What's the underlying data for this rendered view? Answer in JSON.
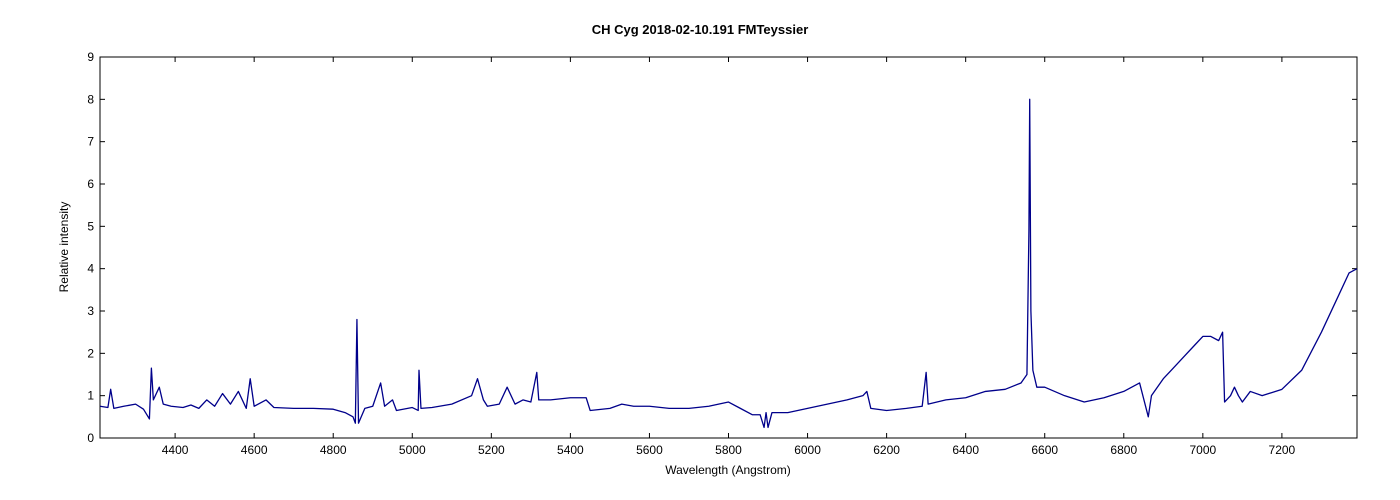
{
  "chart_data": {
    "type": "line",
    "title": "CH Cyg  2018-02-10.191  FMTeyssier",
    "xlabel": "Wavelength (Angstrom)",
    "ylabel": "Relative intensity",
    "xlim": [
      4210,
      7390
    ],
    "ylim": [
      0,
      9
    ],
    "xticks": [
      4400,
      4600,
      4800,
      5000,
      5200,
      5400,
      5600,
      5800,
      6000,
      6200,
      6400,
      6600,
      6800,
      7000,
      7200
    ],
    "yticks": [
      0,
      1,
      2,
      3,
      4,
      5,
      6,
      7,
      8,
      9
    ],
    "x": [
      4210,
      4230,
      4237,
      4245,
      4270,
      4300,
      4320,
      4335,
      4340,
      4345,
      4360,
      4370,
      4390,
      4420,
      4440,
      4460,
      4480,
      4500,
      4520,
      4540,
      4560,
      4580,
      4590,
      4600,
      4630,
      4650,
      4700,
      4750,
      4800,
      4830,
      4850,
      4856,
      4860,
      4864,
      4880,
      4900,
      4920,
      4930,
      4950,
      4960,
      5000,
      5015,
      5017,
      5022,
      5050,
      5100,
      5150,
      5165,
      5180,
      5190,
      5220,
      5240,
      5260,
      5280,
      5300,
      5315,
      5320,
      5350,
      5400,
      5440,
      5450,
      5500,
      5530,
      5560,
      5600,
      5650,
      5700,
      5750,
      5800,
      5830,
      5860,
      5880,
      5890,
      5895,
      5900,
      5910,
      5950,
      6000,
      6050,
      6100,
      6140,
      6150,
      6160,
      6200,
      6250,
      6290,
      6300,
      6305,
      6350,
      6400,
      6450,
      6500,
      6540,
      6555,
      6560,
      6562,
      6565,
      6570,
      6580,
      6600,
      6650,
      6700,
      6750,
      6800,
      6840,
      6862,
      6870,
      6900,
      6920,
      6950,
      6980,
      7000,
      7020,
      7040,
      7050,
      7055,
      7070,
      7080,
      7090,
      7100,
      7120,
      7150,
      7200,
      7250,
      7300,
      7340,
      7370,
      7390
    ],
    "series": [
      {
        "color": "#00008b",
        "values": [
          0.75,
          0.72,
          1.15,
          0.7,
          0.75,
          0.8,
          0.68,
          0.45,
          1.65,
          0.9,
          1.2,
          0.8,
          0.75,
          0.72,
          0.78,
          0.7,
          0.9,
          0.75,
          1.05,
          0.8,
          1.1,
          0.7,
          1.4,
          0.75,
          0.9,
          0.72,
          0.7,
          0.7,
          0.68,
          0.6,
          0.5,
          0.35,
          2.8,
          0.35,
          0.7,
          0.75,
          1.3,
          0.75,
          0.9,
          0.65,
          0.72,
          0.65,
          1.6,
          0.7,
          0.72,
          0.8,
          1.0,
          1.4,
          0.9,
          0.75,
          0.8,
          1.2,
          0.8,
          0.9,
          0.85,
          1.55,
          0.9,
          0.9,
          0.95,
          0.95,
          0.65,
          0.7,
          0.8,
          0.75,
          0.75,
          0.7,
          0.7,
          0.75,
          0.85,
          0.7,
          0.55,
          0.55,
          0.25,
          0.6,
          0.25,
          0.6,
          0.6,
          0.7,
          0.8,
          0.9,
          1.0,
          1.1,
          0.7,
          0.65,
          0.7,
          0.75,
          1.55,
          0.8,
          0.9,
          0.95,
          1.1,
          1.15,
          1.3,
          1.5,
          4.9,
          8.0,
          3.0,
          1.6,
          1.2,
          1.2,
          1.0,
          0.85,
          0.95,
          1.1,
          1.3,
          0.5,
          1.0,
          1.4,
          1.6,
          1.9,
          2.2,
          2.4,
          2.4,
          2.3,
          2.5,
          0.85,
          1.0,
          1.2,
          1.0,
          0.85,
          1.1,
          1.0,
          1.15,
          1.6,
          2.5,
          3.3,
          3.9,
          4.0
        ]
      }
    ]
  }
}
